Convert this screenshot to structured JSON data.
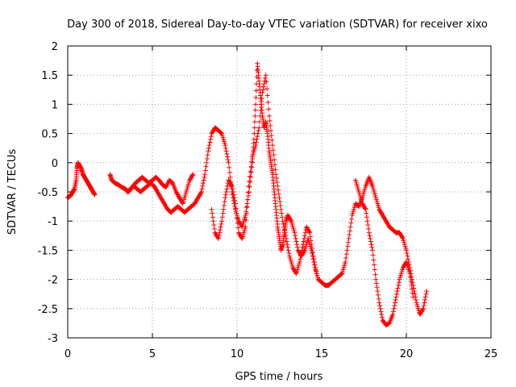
{
  "chart_data": {
    "type": "scatter",
    "title": "Day 300 of 2018, Sidereal Day-to-day VTEC variation (SDTVAR) for receiver xixo",
    "xlabel": "GPS time / hours",
    "ylabel": "SDTVAR / TECUs",
    "xlim": [
      0,
      25
    ],
    "ylim": [
      -3,
      2
    ],
    "xticks": [
      0,
      5,
      10,
      15,
      20,
      25
    ],
    "yticks": [
      2,
      1.5,
      1,
      0.5,
      0,
      -0.5,
      -1,
      -1.5,
      -2,
      -2.5,
      -3
    ],
    "grid": true,
    "marker": "plus",
    "color": "#ff0000",
    "series": [
      {
        "name": "seg-a",
        "points": [
          [
            0.0,
            -0.6
          ],
          [
            0.1,
            -0.58
          ],
          [
            0.2,
            -0.55
          ],
          [
            0.3,
            -0.5
          ],
          [
            0.4,
            -0.45
          ],
          [
            0.5,
            -0.3
          ],
          [
            0.55,
            -0.1
          ],
          [
            0.6,
            0.0
          ],
          [
            0.7,
            -0.05
          ],
          [
            0.8,
            -0.1
          ],
          [
            0.9,
            -0.2
          ],
          [
            1.0,
            -0.25
          ],
          [
            1.1,
            -0.3
          ],
          [
            1.2,
            -0.35
          ],
          [
            1.3,
            -0.4
          ],
          [
            1.4,
            -0.45
          ],
          [
            1.5,
            -0.5
          ],
          [
            1.6,
            -0.55
          ]
        ]
      },
      {
        "name": "seg-b",
        "points": [
          [
            2.5,
            -0.2
          ],
          [
            2.6,
            -0.3
          ],
          [
            2.8,
            -0.35
          ],
          [
            3.0,
            -0.38
          ],
          [
            3.2,
            -0.42
          ],
          [
            3.4,
            -0.45
          ],
          [
            3.6,
            -0.5
          ],
          [
            3.8,
            -0.42
          ],
          [
            4.0,
            -0.35
          ],
          [
            4.2,
            -0.3
          ],
          [
            4.4,
            -0.25
          ],
          [
            4.6,
            -0.3
          ],
          [
            4.8,
            -0.35
          ],
          [
            5.0,
            -0.3
          ],
          [
            5.2,
            -0.25
          ],
          [
            5.4,
            -0.3
          ],
          [
            5.6,
            -0.38
          ],
          [
            5.8,
            -0.42
          ],
          [
            6.0,
            -0.3
          ],
          [
            6.2,
            -0.35
          ],
          [
            6.4,
            -0.5
          ],
          [
            6.6,
            -0.6
          ],
          [
            6.8,
            -0.7
          ],
          [
            7.0,
            -0.5
          ],
          [
            7.2,
            -0.3
          ],
          [
            7.4,
            -0.2
          ]
        ]
      },
      {
        "name": "seg-c",
        "points": [
          [
            3.5,
            -0.5
          ],
          [
            3.7,
            -0.45
          ],
          [
            3.9,
            -0.4
          ],
          [
            4.1,
            -0.45
          ],
          [
            4.3,
            -0.5
          ],
          [
            4.5,
            -0.45
          ],
          [
            4.7,
            -0.4
          ],
          [
            4.9,
            -0.35
          ],
          [
            5.1,
            -0.4
          ],
          [
            5.3,
            -0.5
          ],
          [
            5.5,
            -0.6
          ],
          [
            5.7,
            -0.7
          ],
          [
            5.9,
            -0.8
          ],
          [
            6.1,
            -0.85
          ],
          [
            6.3,
            -0.8
          ],
          [
            6.5,
            -0.75
          ],
          [
            6.7,
            -0.8
          ],
          [
            6.9,
            -0.85
          ],
          [
            7.1,
            -0.8
          ],
          [
            7.3,
            -0.75
          ],
          [
            7.5,
            -0.7
          ],
          [
            7.7,
            -0.6
          ],
          [
            7.9,
            -0.5
          ],
          [
            8.1,
            -0.2
          ],
          [
            8.3,
            0.2
          ],
          [
            8.5,
            0.5
          ],
          [
            8.7,
            0.6
          ],
          [
            8.9,
            0.55
          ],
          [
            9.1,
            0.5
          ],
          [
            9.3,
            0.3
          ],
          [
            9.5,
            0.0
          ],
          [
            9.7,
            -0.5
          ],
          [
            9.9,
            -0.8
          ],
          [
            10.1,
            -1.0
          ],
          [
            10.3,
            -1.1
          ],
          [
            10.5,
            -0.9
          ],
          [
            10.7,
            -0.5
          ],
          [
            10.9,
            0.0
          ],
          [
            11.0,
            0.4
          ],
          [
            11.1,
            1.0
          ],
          [
            11.2,
            1.7
          ],
          [
            11.3,
            1.4
          ],
          [
            11.4,
            1.1
          ],
          [
            11.5,
            0.8
          ],
          [
            11.6,
            0.6
          ],
          [
            11.7,
            0.7
          ],
          [
            11.8,
            0.5
          ],
          [
            11.9,
            0.2
          ],
          [
            12.0,
            0.0
          ],
          [
            12.1,
            -0.2
          ],
          [
            12.2,
            -0.5
          ],
          [
            12.3,
            -0.8
          ],
          [
            12.4,
            -1.1
          ],
          [
            12.5,
            -1.3
          ],
          [
            12.6,
            -1.5
          ],
          [
            12.7,
            -1.4
          ],
          [
            12.8,
            -1.2
          ],
          [
            12.9,
            -1.0
          ],
          [
            13.0,
            -0.9
          ],
          [
            13.2,
            -1.0
          ],
          [
            13.4,
            -1.2
          ],
          [
            13.6,
            -1.5
          ],
          [
            13.8,
            -1.6
          ],
          [
            14.0,
            -1.5
          ],
          [
            14.2,
            -1.3
          ],
          [
            14.4,
            -1.5
          ],
          [
            14.6,
            -1.8
          ],
          [
            14.8,
            -2.0
          ],
          [
            15.0,
            -2.05
          ],
          [
            15.2,
            -2.1
          ],
          [
            15.4,
            -2.1
          ],
          [
            15.6,
            -2.05
          ],
          [
            15.8,
            -2.0
          ],
          [
            16.0,
            -1.95
          ],
          [
            16.2,
            -1.9
          ],
          [
            16.4,
            -1.7
          ],
          [
            16.6,
            -1.3
          ],
          [
            16.8,
            -0.9
          ],
          [
            17.0,
            -0.7
          ],
          [
            17.2,
            -0.75
          ],
          [
            17.4,
            -0.6
          ],
          [
            17.6,
            -0.4
          ],
          [
            17.8,
            -0.25
          ],
          [
            18.0,
            -0.4
          ],
          [
            18.2,
            -0.6
          ],
          [
            18.4,
            -0.8
          ],
          [
            18.6,
            -0.9
          ],
          [
            18.8,
            -1.0
          ],
          [
            19.0,
            -1.1
          ],
          [
            19.2,
            -1.15
          ],
          [
            19.4,
            -1.2
          ],
          [
            19.6,
            -1.2
          ],
          [
            19.8,
            -1.3
          ],
          [
            20.0,
            -1.5
          ],
          [
            20.2,
            -1.8
          ],
          [
            20.4,
            -2.1
          ],
          [
            20.6,
            -2.4
          ],
          [
            20.8,
            -2.6
          ],
          [
            21.0,
            -2.5
          ],
          [
            21.2,
            -2.2
          ]
        ]
      },
      {
        "name": "seg-d",
        "points": [
          [
            8.5,
            -0.8
          ],
          [
            8.7,
            -1.2
          ],
          [
            8.9,
            -1.3
          ],
          [
            9.1,
            -1.0
          ],
          [
            9.3,
            -0.6
          ],
          [
            9.5,
            -0.3
          ],
          [
            9.7,
            -0.4
          ],
          [
            9.9,
            -0.7
          ],
          [
            10.1,
            -1.2
          ],
          [
            10.3,
            -1.3
          ],
          [
            10.5,
            -1.1
          ],
          [
            10.7,
            -0.4
          ],
          [
            10.9,
            0.1
          ],
          [
            11.1,
            0.3
          ],
          [
            11.3,
            0.6
          ],
          [
            11.5,
            1.2
          ],
          [
            11.7,
            1.5
          ],
          [
            11.9,
            0.8
          ],
          [
            12.1,
            0.3
          ],
          [
            12.3,
            -0.2
          ],
          [
            12.5,
            -0.6
          ],
          [
            12.7,
            -1.0
          ],
          [
            12.9,
            -1.3
          ],
          [
            13.1,
            -1.6
          ],
          [
            13.3,
            -1.8
          ],
          [
            13.5,
            -1.9
          ],
          [
            13.7,
            -1.7
          ],
          [
            13.9,
            -1.4
          ],
          [
            14.1,
            -1.1
          ],
          [
            14.3,
            -1.2
          ],
          [
            14.5,
            -1.6
          ],
          [
            14.7,
            -1.9
          ]
        ]
      },
      {
        "name": "seg-e",
        "points": [
          [
            17.0,
            -0.3
          ],
          [
            17.2,
            -0.5
          ],
          [
            17.4,
            -0.7
          ],
          [
            17.6,
            -0.8
          ],
          [
            17.8,
            -1.2
          ],
          [
            18.0,
            -1.5
          ],
          [
            18.2,
            -2.0
          ],
          [
            18.4,
            -2.4
          ],
          [
            18.6,
            -2.7
          ],
          [
            18.8,
            -2.78
          ],
          [
            19.0,
            -2.75
          ],
          [
            19.2,
            -2.6
          ],
          [
            19.4,
            -2.3
          ],
          [
            19.6,
            -2.0
          ],
          [
            19.8,
            -1.8
          ],
          [
            20.0,
            -1.7
          ],
          [
            20.2,
            -1.9
          ],
          [
            20.4,
            -2.3
          ]
        ]
      }
    ]
  }
}
